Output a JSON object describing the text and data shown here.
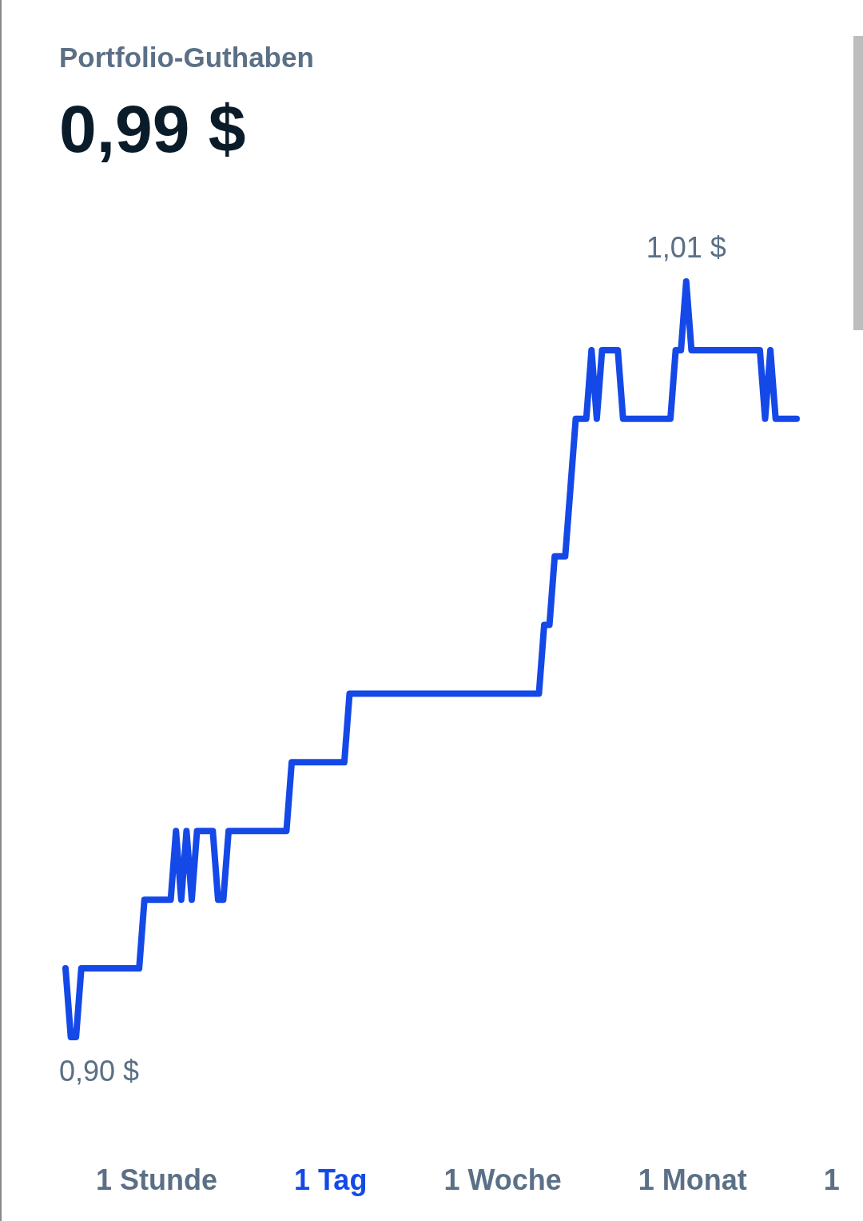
{
  "chart_data": {
    "type": "line",
    "title": "Portfolio-Guthaben",
    "subtitle": "0,99 $",
    "categories": [
      null,
      null,
      null,
      null,
      null,
      null,
      null,
      null,
      null,
      null,
      null,
      null,
      null,
      null,
      null,
      null,
      null,
      null,
      null,
      null,
      null,
      null,
      null,
      null,
      null,
      null,
      null,
      null,
      null,
      null,
      null,
      null,
      null,
      null,
      null,
      null,
      null,
      null,
      null,
      null,
      null,
      null,
      null,
      null,
      null,
      null,
      null,
      null,
      null,
      null,
      null,
      null,
      null,
      null,
      null,
      null,
      null,
      null,
      null,
      null,
      null,
      null,
      null,
      null,
      null,
      null,
      null,
      null,
      null,
      null,
      null,
      null,
      null,
      null,
      null,
      null,
      null,
      null,
      null,
      null,
      null,
      null,
      null,
      null,
      null,
      null,
      null,
      null,
      null,
      null,
      null,
      null,
      null,
      null,
      null,
      null,
      null,
      null,
      null,
      null,
      null,
      null,
      null,
      null,
      null,
      null,
      null,
      null,
      null,
      null,
      null,
      null,
      null,
      null,
      null,
      null,
      null,
      null,
      null,
      null,
      null,
      null,
      null,
      null,
      null,
      null,
      null,
      null,
      null,
      null,
      null,
      null,
      null,
      null,
      null,
      null,
      null,
      null,
      null,
      null
    ],
    "values": [
      0.91,
      0.9,
      0.9,
      0.91,
      0.91,
      0.91,
      0.91,
      0.91,
      0.91,
      0.91,
      0.91,
      0.91,
      0.91,
      0.91,
      0.91,
      0.92,
      0.92,
      0.92,
      0.92,
      0.92,
      0.92,
      0.93,
      0.92,
      0.93,
      0.92,
      0.93,
      0.93,
      0.93,
      0.93,
      0.92,
      0.92,
      0.93,
      0.93,
      0.93,
      0.93,
      0.93,
      0.93,
      0.93,
      0.93,
      0.93,
      0.93,
      0.93,
      0.93,
      0.94,
      0.94,
      0.94,
      0.94,
      0.94,
      0.94,
      0.94,
      0.94,
      0.94,
      0.94,
      0.94,
      0.95,
      0.95,
      0.95,
      0.95,
      0.95,
      0.95,
      0.95,
      0.95,
      0.95,
      0.95,
      0.95,
      0.95,
      0.95,
      0.95,
      0.95,
      0.95,
      0.95,
      0.95,
      0.95,
      0.95,
      0.95,
      0.95,
      0.95,
      0.95,
      0.95,
      0.95,
      0.95,
      0.95,
      0.95,
      0.95,
      0.95,
      0.95,
      0.95,
      0.95,
      0.95,
      0.95,
      0.95,
      0.96,
      0.96,
      0.97,
      0.97,
      0.97,
      0.98,
      0.99,
      0.99,
      0.99,
      1,
      0.99,
      1,
      1,
      1,
      1,
      0.99,
      0.99,
      0.99,
      0.99,
      0.99,
      0.99,
      0.99,
      0.99,
      0.99,
      0.99,
      1,
      1,
      1.01,
      1,
      1,
      1,
      1,
      1,
      1,
      1,
      1,
      1,
      1,
      1,
      1,
      1,
      1,
      0.99,
      1,
      0.99,
      0.99,
      0.99,
      0.99,
      0.99
    ],
    "value_labels": [
      null,
      "0,90 $",
      null,
      null,
      null,
      null,
      null,
      null,
      null,
      null,
      null,
      null,
      null,
      null,
      null,
      null,
      null,
      null,
      null,
      null,
      null,
      null,
      null,
      null,
      null,
      null,
      null,
      null,
      null,
      null,
      null,
      null,
      null,
      null,
      null,
      null,
      null,
      null,
      null,
      null,
      null,
      null,
      null,
      null,
      null,
      null,
      null,
      null,
      null,
      null,
      null,
      null,
      null,
      null,
      null,
      null,
      null,
      null,
      null,
      null,
      null,
      null,
      null,
      null,
      null,
      null,
      null,
      null,
      null,
      null,
      null,
      null,
      null,
      null,
      null,
      null,
      null,
      null,
      null,
      null,
      null,
      null,
      null,
      null,
      null,
      null,
      null,
      null,
      null,
      null,
      null,
      null,
      null,
      null,
      null,
      null,
      null,
      null,
      null,
      null,
      null,
      null,
      null,
      null,
      null,
      null,
      null,
      null,
      null,
      null,
      null,
      null,
      null,
      null,
      null,
      null,
      null,
      null,
      "1,01 $",
      null,
      null,
      null,
      null,
      null,
      null,
      null,
      null,
      null,
      null,
      null,
      null,
      null,
      null,
      null,
      null,
      null,
      null,
      null,
      null,
      null
    ],
    "color": "#1449e8",
    "annotations": [
      "1 Stunde",
      "1 Tag",
      "1 Woche",
      "1 Monat",
      "1"
    ]
  }
}
